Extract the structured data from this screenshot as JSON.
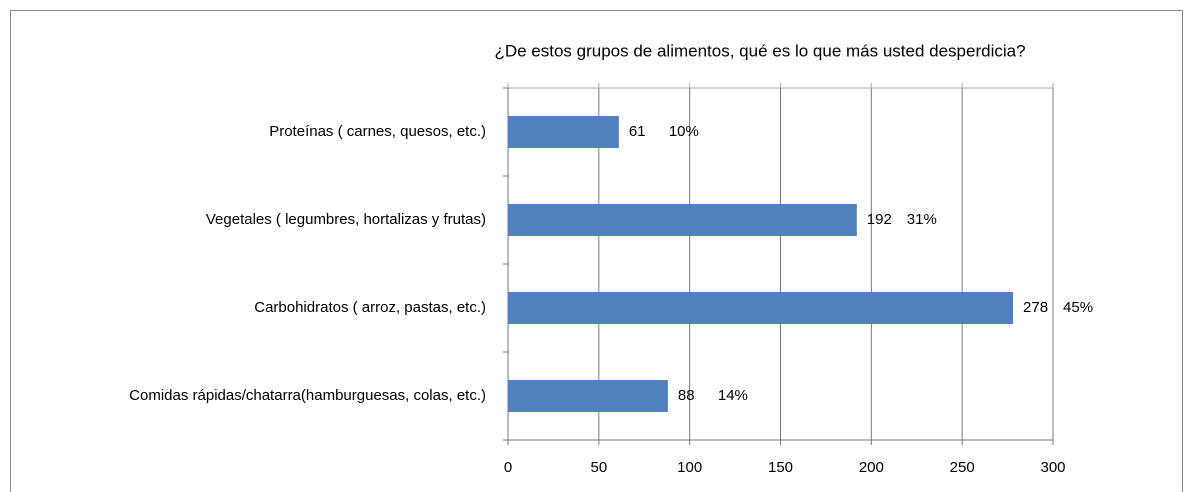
{
  "chart_data": {
    "type": "bar",
    "orientation": "horizontal",
    "title": "¿De estos grupos de alimentos, qué es lo que más usted desperdicia?",
    "categories": [
      "Proteínas ( carnes, quesos, etc.)",
      "Vegetales ( legumbres, hortalizas  y frutas)",
      "Carbohidratos ( arroz, pastas,  etc.)",
      "Comidas rápidas/chatarra(hamburguesas,  colas, etc.)"
    ],
    "values": [
      61,
      192,
      278,
      88
    ],
    "percent_labels": [
      "10%",
      "31%",
      "45%",
      "14%"
    ],
    "color": "#4f81bd",
    "xlim": [
      0,
      300
    ],
    "xticks": [
      0,
      50,
      100,
      150,
      200,
      250,
      300
    ],
    "grid": true
  }
}
